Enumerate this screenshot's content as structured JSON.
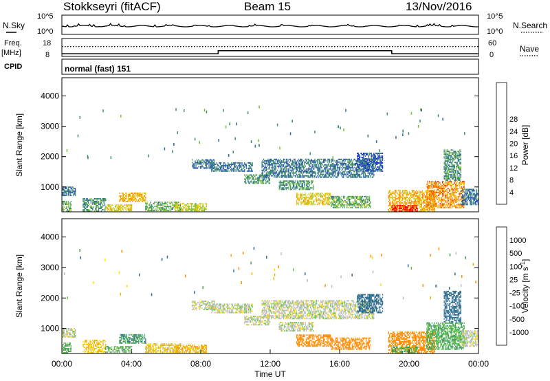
{
  "header": {
    "station": "Stokkseyri (fitACF)",
    "beam": "Beam 15",
    "date": "13/Nov/2016"
  },
  "strip_labels": {
    "nsky": "N.Sky",
    "nsearch": "N.Search",
    "freq": "Freq.",
    "freq_unit": "[MHz]",
    "nave": "Nave",
    "cpid": "CPID",
    "cpid_value": "normal (fast) 151",
    "noise_ticks": [
      "10^5",
      "10^0"
    ],
    "freq_ticks": [
      "18",
      "8"
    ],
    "nave_ticks": [
      "60",
      "0"
    ]
  },
  "colors": {
    "nsky_line": "#000000",
    "freq_line": "#000000",
    "power_scale": [
      "#0000ff",
      "#1f3fbf",
      "#2a6a8f",
      "#3a8f5f",
      "#70c030",
      "#d0d020",
      "#f0c000",
      "#ff8000",
      "#ff4000",
      "#ff0000"
    ],
    "velocity_scale": [
      "#ff0000",
      "#ff5000",
      "#ff8c00",
      "#f0b400",
      "#ffe000",
      "#bbbbbb",
      "#bbbbbb",
      "#5cc838",
      "#3a9e58",
      "#2a6a8f",
      "#1f3fbf",
      "#0000ff"
    ]
  },
  "chart_data": [
    {
      "type": "line",
      "panel": "noise",
      "left_series": "N.Sky",
      "right_series": "N.Search",
      "y_scale": "log",
      "yticks_left": [
        "10^5",
        "10^0"
      ],
      "yticks_right": [
        "10^5",
        "10^0"
      ],
      "x": [
        0,
        24
      ],
      "xlim": [
        0,
        24
      ]
    },
    {
      "type": "line",
      "panel": "frequency_nave",
      "series": [
        {
          "name": "Freq.",
          "unit": "MHz",
          "x": [
            0,
            9,
            9,
            19,
            19,
            24
          ],
          "values": [
            9.5,
            9.5,
            11.2,
            11.2,
            9.5,
            9.5
          ]
        },
        {
          "name": "Nave",
          "x": [
            0,
            24
          ],
          "values": [
            33,
            33
          ]
        }
      ],
      "ylim_left": [
        8,
        18
      ],
      "ylim_right": [
        0,
        60
      ],
      "xlim": [
        0,
        24
      ]
    },
    {
      "type": "heatmap",
      "panel": "power",
      "ylabel": "Slant Range [km]",
      "colorbar_label": "Power [dB]",
      "colorbar_ticks": [
        "4",
        "8",
        "12",
        "16",
        "20",
        "24",
        "28"
      ],
      "colorbar_range": [
        0,
        30
      ],
      "yticks": [
        "1000",
        "2000",
        "3000",
        "4000"
      ],
      "ylim": [
        180,
        4600
      ],
      "xlim": [
        0,
        24
      ],
      "regions": [
        {
          "t0": 0.0,
          "t1": 0.8,
          "r0": 700,
          "r1": 1000,
          "value": 8
        },
        {
          "t0": 0.0,
          "t1": 0.5,
          "r0": 180,
          "r1": 500,
          "value": 12
        },
        {
          "t0": 1.2,
          "t1": 2.5,
          "r0": 180,
          "r1": 600,
          "value": 10
        },
        {
          "t0": 2.5,
          "t1": 4.0,
          "r0": 200,
          "r1": 400,
          "value": 18
        },
        {
          "t0": 3.3,
          "t1": 4.8,
          "r0": 500,
          "r1": 800,
          "value": 20
        },
        {
          "t0": 4.8,
          "t1": 6.8,
          "r0": 200,
          "r1": 500,
          "value": 12
        },
        {
          "t0": 6.5,
          "t1": 8.3,
          "r0": 200,
          "r1": 450,
          "value": 16
        },
        {
          "t0": 7.5,
          "t1": 8.8,
          "r0": 1600,
          "r1": 1900,
          "value": 8
        },
        {
          "t0": 8.6,
          "t1": 11.0,
          "r0": 1500,
          "r1": 1800,
          "value": 8
        },
        {
          "t0": 10.5,
          "t1": 12.0,
          "r0": 1100,
          "r1": 1400,
          "value": 10
        },
        {
          "t0": 11.5,
          "t1": 18.0,
          "r0": 1300,
          "r1": 1900,
          "value": 8
        },
        {
          "t0": 12.5,
          "t1": 14.5,
          "r0": 900,
          "r1": 1200,
          "value": 10
        },
        {
          "t0": 13.5,
          "t1": 15.5,
          "r0": 400,
          "r1": 800,
          "value": 18
        },
        {
          "t0": 15.5,
          "t1": 17.8,
          "r0": 300,
          "r1": 700,
          "value": 12
        },
        {
          "t0": 17.0,
          "t1": 18.5,
          "r0": 1500,
          "r1": 2100,
          "value": 6
        },
        {
          "t0": 18.8,
          "t1": 21.5,
          "r0": 180,
          "r1": 900,
          "value": 20
        },
        {
          "t0": 19.0,
          "t1": 20.5,
          "r0": 180,
          "r1": 400,
          "value": 28
        },
        {
          "t0": 21.0,
          "t1": 23.2,
          "r0": 300,
          "r1": 1200,
          "value": 22
        },
        {
          "t0": 22.0,
          "t1": 23.0,
          "r0": 1200,
          "r1": 2200,
          "value": 10
        },
        {
          "t0": 23.0,
          "t1": 24.0,
          "r0": 400,
          "r1": 900,
          "value": 8
        }
      ]
    },
    {
      "type": "heatmap",
      "panel": "velocity",
      "ylabel": "Slant Range [km]",
      "xlabel": "Time UT",
      "colorbar_label": "Velocity [m s",
      "colorbar_label_sup": "-1",
      "colorbar_label_close": "]",
      "colorbar_ticks": [
        "-1000",
        "-500",
        "-100",
        "-25",
        "25",
        "100",
        "500",
        "1000"
      ],
      "yticks": [
        "1000",
        "2000",
        "3000",
        "4000"
      ],
      "ylim": [
        180,
        4600
      ],
      "xticks": [
        "00:00",
        "04:00",
        "08:00",
        "12:00",
        "16:00",
        "20:00",
        "00:00"
      ],
      "xlim": [
        0,
        24
      ],
      "regions": [
        {
          "t0": 0.0,
          "t1": 0.8,
          "r0": 700,
          "r1": 1000,
          "value": 0
        },
        {
          "t0": 0.0,
          "t1": 0.5,
          "r0": 180,
          "r1": 500,
          "value": 60
        },
        {
          "t0": 1.2,
          "t1": 2.5,
          "r0": 180,
          "r1": 600,
          "value": -60
        },
        {
          "t0": 2.5,
          "t1": 4.0,
          "r0": 200,
          "r1": 400,
          "value": 40
        },
        {
          "t0": 3.3,
          "t1": 4.8,
          "r0": 500,
          "r1": 800,
          "value": 80
        },
        {
          "t0": 4.8,
          "t1": 6.8,
          "r0": 200,
          "r1": 500,
          "value": -50
        },
        {
          "t0": 6.5,
          "t1": 8.3,
          "r0": 200,
          "r1": 450,
          "value": -80
        },
        {
          "t0": 7.5,
          "t1": 8.8,
          "r0": 1600,
          "r1": 1900,
          "value": 0
        },
        {
          "t0": 8.6,
          "t1": 11.0,
          "r0": 1500,
          "r1": 1800,
          "value": 0
        },
        {
          "t0": 10.5,
          "t1": 12.0,
          "r0": 1100,
          "r1": 1400,
          "value": 0
        },
        {
          "t0": 11.5,
          "t1": 18.0,
          "r0": 1300,
          "r1": 1900,
          "value": 0
        },
        {
          "t0": 12.5,
          "t1": 14.5,
          "r0": 900,
          "r1": 1200,
          "value": 0
        },
        {
          "t0": 13.5,
          "t1": 15.5,
          "r0": 400,
          "r1": 800,
          "value": -300
        },
        {
          "t0": 15.5,
          "t1": 17.8,
          "r0": 300,
          "r1": 700,
          "value": -250
        },
        {
          "t0": 17.0,
          "t1": 18.5,
          "r0": 1500,
          "r1": 2100,
          "value": 200
        },
        {
          "t0": 18.8,
          "t1": 21.5,
          "r0": 180,
          "r1": 900,
          "value": -150
        },
        {
          "t0": 19.0,
          "t1": 20.5,
          "r0": 180,
          "r1": 400,
          "value": 60
        },
        {
          "t0": 21.0,
          "t1": 23.2,
          "r0": 300,
          "r1": 1200,
          "value": 60
        },
        {
          "t0": 22.0,
          "t1": 23.0,
          "r0": 1200,
          "r1": 2200,
          "value": 300
        },
        {
          "t0": 23.0,
          "t1": 24.0,
          "r0": 400,
          "r1": 900,
          "value": 0
        }
      ]
    }
  ]
}
